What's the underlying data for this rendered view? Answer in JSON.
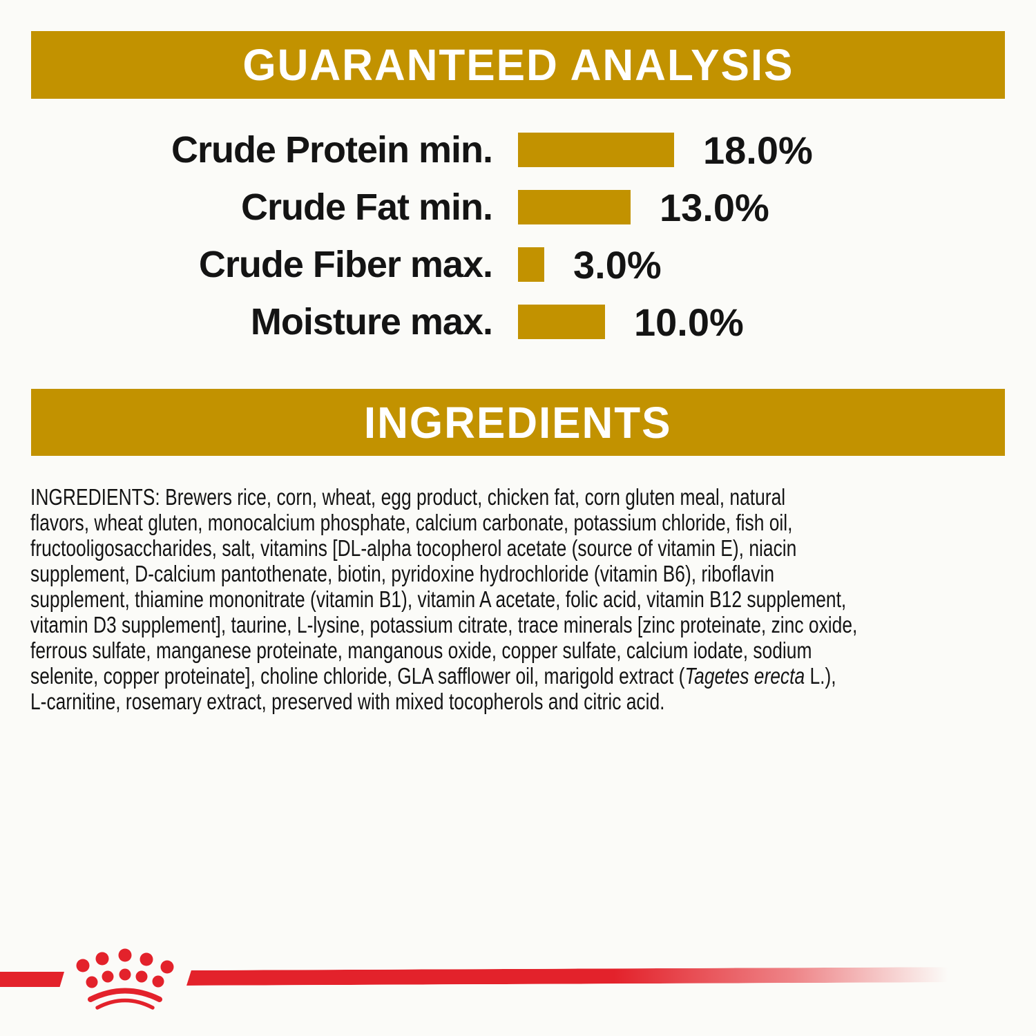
{
  "colors": {
    "gold": "#C29200",
    "red": "#E3222B",
    "ink": "#141414",
    "paper": "#FBFBF8",
    "banner-text": "#FFFFFF"
  },
  "guaranteed_analysis": {
    "title": "GUARANTEED ANALYSIS",
    "rows": [
      {
        "label": "Crude Protein min.",
        "value": "18.0%",
        "pct": 18.0
      },
      {
        "label": "Crude Fat min.",
        "value": "13.0%",
        "pct": 13.0
      },
      {
        "label": "Crude Fiber max.",
        "value": "3.0%",
        "pct": 3.0
      },
      {
        "label": "Moisture max.",
        "value": "10.0%",
        "pct": 10.0
      }
    ]
  },
  "chart_data": {
    "type": "bar",
    "orientation": "horizontal",
    "title": "GUARANTEED ANALYSIS",
    "categories": [
      "Crude Protein min.",
      "Crude Fat min.",
      "Crude Fiber max.",
      "Moisture max."
    ],
    "values": [
      18.0,
      13.0,
      3.0,
      10.0
    ],
    "value_labels": [
      "18.0%",
      "13.0%",
      "3.0%",
      "10.0%"
    ],
    "bar_color": "#C29200",
    "xlim": [
      0,
      20
    ],
    "grid": false,
    "legend": false
  },
  "ingredients": {
    "title": "INGREDIENTS",
    "lines": [
      "INGREDIENTS: Brewers rice, corn, wheat, egg product, chicken fat, corn gluten meal, natural",
      "flavors, wheat gluten, monocalcium phosphate, calcium carbonate, potassium chloride, fish oil,",
      "fructooligosaccharides, salt, vitamins [DL-alpha tocopherol acetate (source of vitamin E), niacin",
      "supplement, D-calcium pantothenate, biotin, pyridoxine hydrochloride (vitamin B6), riboflavin",
      "supplement, thiamine mononitrate (vitamin B1), vitamin A acetate, folic acid, vitamin B12 supplement,",
      "vitamin D3 supplement], taurine, L-lysine, potassium citrate, trace minerals [zinc proteinate, zinc oxide,",
      "ferrous sulfate, manganese proteinate, manganous oxide, copper sulfate, calcium iodate, sodium",
      {
        "pre": "selenite, copper proteinate], choline chloride, GLA safflower oil, marigold extract (",
        "italic": "Tagetes erecta",
        "post": " L.),"
      },
      "L-carnitine, rosemary extract, preserved with mixed tocopherols and citric acid."
    ]
  },
  "logo": {
    "name": "Royal Canin crown"
  }
}
